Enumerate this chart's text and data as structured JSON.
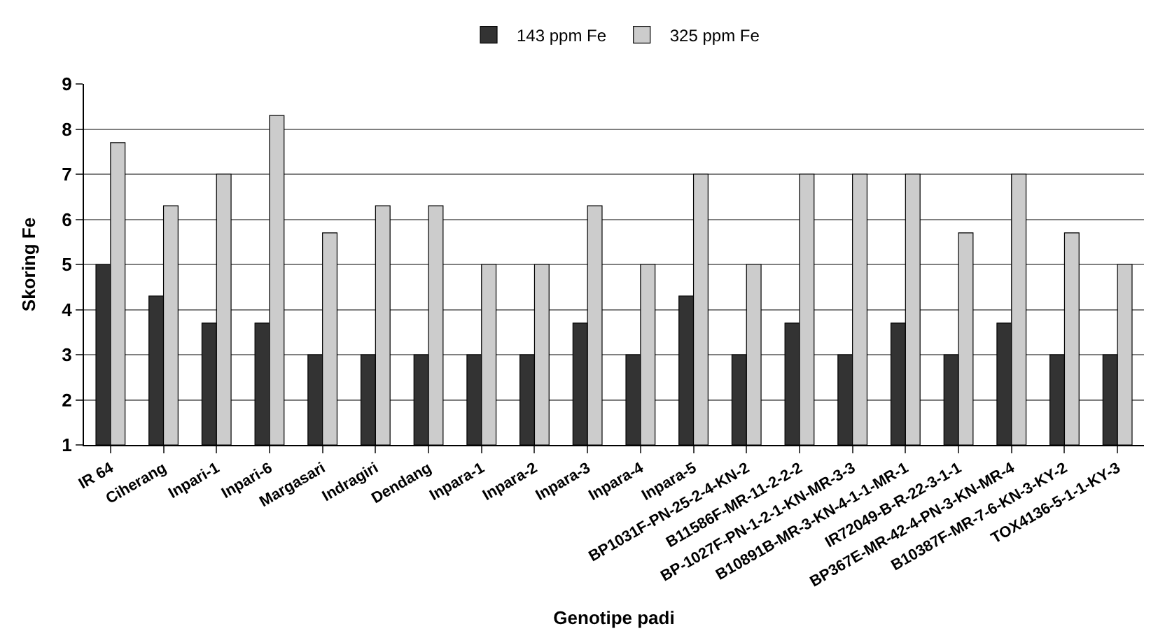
{
  "chart_data": {
    "type": "bar",
    "xlabel": "Genotipe padi",
    "ylabel": "Skoring Fe",
    "categories": [
      "IR 64",
      "Ciherang",
      "Inpari-1",
      "Inpari-6",
      "Margasari",
      "Indragiri",
      "Dendang",
      "Inpara-1",
      "Inpara-2",
      "Inpara-3",
      "Inpara-4",
      "Inpara-5",
      "BP1031F-PN-25-2-4-KN-2",
      "B11586F-MR-11-2-2-2",
      "BP-1027F-PN-1-2-1-KN-MR-3-3",
      "B10891B-MR-3-KN-4-1-1-MR-1",
      "IR72049-B-R-22-3-1-1",
      "BP367E-MR-42-4-PN-3-KN-MR-4",
      "B10387F-MR-7-6-KN-3-KY-2",
      "TOX4136-5-1-1-KY-3"
    ],
    "series": [
      {
        "name": "143 ppm Fe",
        "color": "#333333",
        "values": [
          5,
          4.3,
          3.7,
          3.7,
          3,
          3,
          3,
          3,
          3,
          3.7,
          3,
          4.3,
          3,
          3.7,
          3,
          3.7,
          3,
          3.7,
          3,
          3
        ]
      },
      {
        "name": "325 ppm Fe",
        "color": "#cccccc",
        "values": [
          7.7,
          6.3,
          7,
          8.3,
          5.7,
          6.3,
          6.3,
          5,
          5,
          6.3,
          5,
          7,
          5,
          7,
          7,
          7,
          5.7,
          7,
          5.7,
          5
        ]
      }
    ],
    "ylim": [
      1,
      9
    ],
    "yticks": [
      1,
      2,
      3,
      4,
      5,
      6,
      7,
      8,
      9
    ],
    "grid": "y",
    "legend": "top"
  }
}
